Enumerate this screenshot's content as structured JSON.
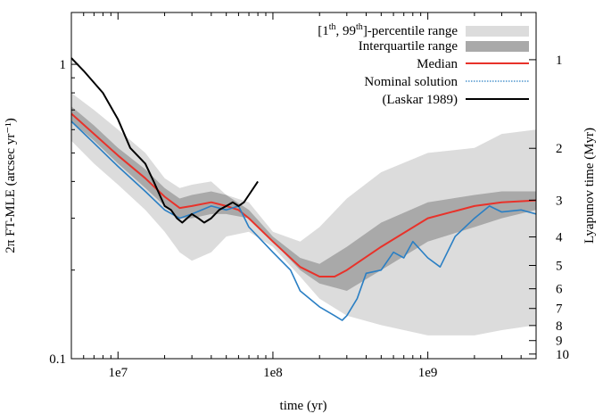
{
  "chart_data": {
    "type": "line",
    "xlabel": "time (yr)",
    "ylabel": "2π FT-MLE (arcsec yr⁻¹)",
    "y2label": "Lyapunov time (Myr)",
    "xscale": "log",
    "yscale": "log",
    "xlim": [
      5000000,
      5000000000
    ],
    "ylim": [
      0.1,
      1.5
    ],
    "grid": false,
    "legend_position": "top-right",
    "x_ticks": [
      {
        "value": 10000000,
        "label": "1e7"
      },
      {
        "value": 100000000,
        "label": "1e8"
      },
      {
        "value": 1000000000,
        "label": "1e9"
      }
    ],
    "y_ticks": [
      {
        "value": 0.1,
        "label": "0.1"
      },
      {
        "value": 1,
        "label": "1"
      }
    ],
    "y2_ticks": [
      {
        "value": 1,
        "label": "1"
      },
      {
        "value": 2,
        "label": "2"
      },
      {
        "value": 3,
        "label": "3"
      },
      {
        "value": 4,
        "label": "4"
      },
      {
        "value": 5,
        "label": "5"
      },
      {
        "value": 6,
        "label": "6"
      },
      {
        "value": 7,
        "label": "7"
      },
      {
        "value": 8,
        "label": "8"
      },
      {
        "value": 9,
        "label": "9"
      },
      {
        "value": 10,
        "label": "10"
      }
    ],
    "legend": {
      "percentile_pre": "[1",
      "percentile_sup1": "th",
      "percentile_mid": ", 99",
      "percentile_sup2": "th",
      "percentile_post": "]-percentile range",
      "iqr": "Interquartile range",
      "median": "Median",
      "nominal": "Nominal solution",
      "laskar": "(Laskar 1989)"
    },
    "colors": {
      "percentile": "#dcdcdc",
      "iqr": "#a9a9a9",
      "median": "#e8322a",
      "nominal": "#2a7fc4",
      "laskar": "#000000"
    },
    "percentile_band": {
      "x": [
        5000000,
        7000000,
        10000000,
        15000000,
        20000000,
        25000000,
        30000000,
        40000000,
        50000000,
        70000000,
        100000000,
        150000000,
        200000000,
        300000000,
        500000000,
        1000000000,
        2000000000,
        3000000000,
        5000000000
      ],
      "low": [
        0.55,
        0.46,
        0.39,
        0.32,
        0.27,
        0.23,
        0.215,
        0.23,
        0.26,
        0.27,
        0.24,
        0.19,
        0.16,
        0.14,
        0.13,
        0.12,
        0.12,
        0.125,
        0.13
      ],
      "high": [
        0.8,
        0.7,
        0.6,
        0.5,
        0.41,
        0.38,
        0.39,
        0.4,
        0.36,
        0.34,
        0.27,
        0.25,
        0.28,
        0.35,
        0.43,
        0.5,
        0.52,
        0.58,
        0.6
      ]
    },
    "iqr_band": {
      "x": [
        5000000,
        7000000,
        10000000,
        15000000,
        20000000,
        25000000,
        30000000,
        40000000,
        50000000,
        70000000,
        100000000,
        150000000,
        200000000,
        300000000,
        500000000,
        1000000000,
        2000000000,
        3000000000,
        5000000000
      ],
      "low": [
        0.64,
        0.55,
        0.46,
        0.38,
        0.33,
        0.3,
        0.3,
        0.31,
        0.31,
        0.3,
        0.25,
        0.2,
        0.18,
        0.17,
        0.2,
        0.25,
        0.28,
        0.3,
        0.32
      ],
      "high": [
        0.72,
        0.62,
        0.52,
        0.44,
        0.38,
        0.35,
        0.36,
        0.37,
        0.36,
        0.32,
        0.26,
        0.22,
        0.21,
        0.24,
        0.29,
        0.34,
        0.36,
        0.37,
        0.37
      ]
    },
    "series": [
      {
        "name": "Median",
        "x": [
          5000000,
          7000000,
          10000000,
          15000000,
          20000000,
          25000000,
          30000000,
          40000000,
          50000000,
          60000000,
          70000000,
          100000000,
          150000000,
          200000000,
          250000000,
          300000000,
          500000000,
          1000000000,
          2000000000,
          3000000000,
          5000000000
        ],
        "y": [
          0.68,
          0.58,
          0.49,
          0.41,
          0.355,
          0.325,
          0.33,
          0.34,
          0.33,
          0.32,
          0.3,
          0.25,
          0.205,
          0.19,
          0.19,
          0.2,
          0.24,
          0.3,
          0.33,
          0.34,
          0.345
        ]
      },
      {
        "name": "Nominal solution",
        "x": [
          5000000,
          7000000,
          10000000,
          15000000,
          20000000,
          25000000,
          30000000,
          40000000,
          50000000,
          60000000,
          70000000,
          100000000,
          130000000,
          150000000,
          200000000,
          250000000,
          280000000,
          300000000,
          350000000,
          400000000,
          500000000,
          600000000,
          700000000,
          800000000,
          1000000000,
          1200000000,
          1500000000,
          2000000000,
          2500000000,
          3000000000,
          4000000000,
          5000000000
        ],
        "y": [
          0.64,
          0.54,
          0.45,
          0.37,
          0.32,
          0.3,
          0.31,
          0.33,
          0.32,
          0.33,
          0.28,
          0.23,
          0.2,
          0.17,
          0.15,
          0.14,
          0.135,
          0.14,
          0.16,
          0.195,
          0.2,
          0.23,
          0.22,
          0.25,
          0.22,
          0.205,
          0.26,
          0.3,
          0.33,
          0.315,
          0.32,
          0.31
        ]
      },
      {
        "name": "(Laskar 1989)",
        "x": [
          5000000,
          6000000,
          8000000,
          10000000,
          12000000,
          15000000,
          17000000,
          20000000,
          22000000,
          24000000,
          26000000,
          30000000,
          33000000,
          36000000,
          40000000,
          45000000,
          50000000,
          55000000,
          60000000,
          65000000,
          70000000,
          80000000
        ],
        "y": [
          1.05,
          0.95,
          0.8,
          0.65,
          0.52,
          0.46,
          0.4,
          0.33,
          0.32,
          0.3,
          0.29,
          0.31,
          0.3,
          0.29,
          0.3,
          0.32,
          0.33,
          0.34,
          0.33,
          0.34,
          0.36,
          0.4
        ]
      }
    ]
  }
}
